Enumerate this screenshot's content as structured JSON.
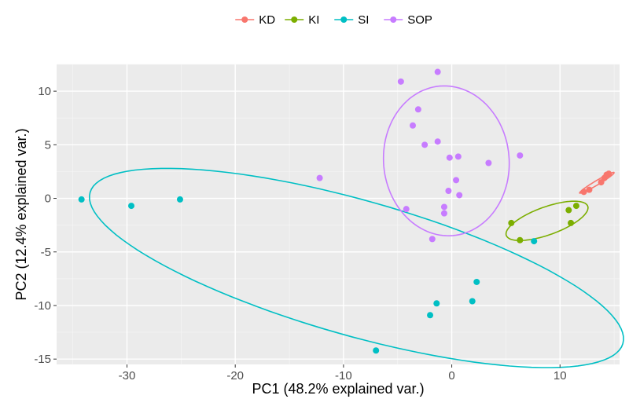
{
  "chart_data": {
    "type": "scatter",
    "xlabel": "PC1 (48.2% explained var.)",
    "ylabel": "PC2 (12.4% explained var.)",
    "xlim": [
      -36.5,
      15.5
    ],
    "ylim": [
      -15.5,
      12.5
    ],
    "x_ticks": [
      -30,
      -20,
      -10,
      0,
      10
    ],
    "y_ticks": [
      -15,
      -10,
      -5,
      0,
      5,
      10
    ],
    "grid": true,
    "legend_position": "top",
    "series": [
      {
        "name": "KD",
        "color": "#F8766D",
        "points": [
          [
            12.2,
            0.6
          ],
          [
            12.7,
            0.8
          ],
          [
            13.8,
            1.5
          ],
          [
            14.1,
            1.9
          ],
          [
            14.3,
            2.2
          ],
          [
            14.5,
            2.3
          ]
        ],
        "ellipse": {
          "cx": 13.4,
          "cy": 1.45,
          "a": 1.85,
          "b": 0.2,
          "angle_deg": 31
        }
      },
      {
        "name": "KI",
        "color": "#7CAE00",
        "points": [
          [
            5.5,
            -2.3
          ],
          [
            6.3,
            -3.9
          ],
          [
            10.8,
            -1.1
          ],
          [
            11.0,
            -2.3
          ],
          [
            11.5,
            -0.7
          ]
        ],
        "ellipse": {
          "cx": 8.8,
          "cy": -2.1,
          "a": 4.0,
          "b": 1.3,
          "angle_deg": 20
        }
      },
      {
        "name": "SI",
        "color": "#00BFC4",
        "points": [
          [
            -34.2,
            -0.1
          ],
          [
            -29.6,
            -0.7
          ],
          [
            -25.1,
            -0.1
          ],
          [
            -7.0,
            -14.2
          ],
          [
            -2.0,
            -10.9
          ],
          [
            -1.4,
            -9.8
          ],
          [
            1.9,
            -9.6
          ],
          [
            2.3,
            -7.8
          ],
          [
            7.6,
            -4.0
          ]
        ],
        "ellipse": {
          "cx": -8.8,
          "cy": -6.5,
          "a": 25.6,
          "b": 6.3,
          "angle_deg": -16
        }
      },
      {
        "name": "SOP",
        "color": "#C77CFF",
        "points": [
          [
            -4.7,
            10.9
          ],
          [
            -1.3,
            11.8
          ],
          [
            -3.1,
            8.3
          ],
          [
            -3.6,
            6.8
          ],
          [
            -1.3,
            5.3
          ],
          [
            -2.5,
            5.0
          ],
          [
            -0.2,
            3.8
          ],
          [
            0.6,
            3.9
          ],
          [
            6.3,
            4.0
          ],
          [
            3.4,
            3.3
          ],
          [
            -12.2,
            1.9
          ],
          [
            0.4,
            1.7
          ],
          [
            -0.3,
            0.7
          ],
          [
            0.7,
            0.3
          ],
          [
            -4.2,
            -1.0
          ],
          [
            -0.7,
            -0.8
          ],
          [
            -0.7,
            -1.4
          ],
          [
            -1.8,
            -3.8
          ]
        ],
        "ellipse": {
          "cx": -0.5,
          "cy": 3.5,
          "a": 5.8,
          "b": 7.0,
          "angle_deg": 5
        }
      }
    ]
  }
}
